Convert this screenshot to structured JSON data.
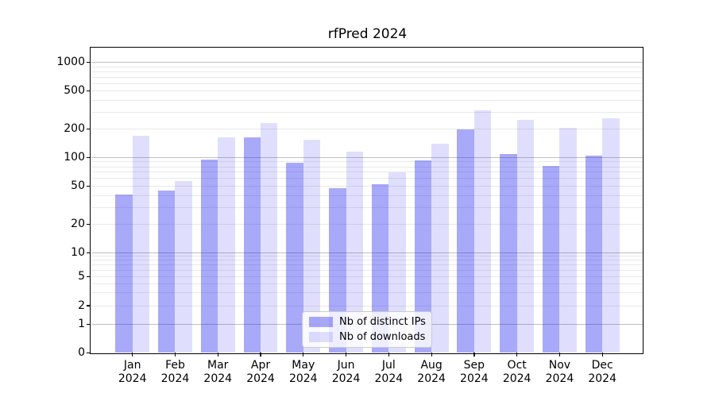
{
  "chart_data": {
    "type": "bar",
    "title": "rfPred 2024",
    "yscale": "log-like custom (compressed below 10, linear 0-1)",
    "ylim": [
      0,
      1430
    ],
    "yticks": [
      0,
      1,
      2,
      5,
      10,
      20,
      50,
      100,
      200,
      500,
      1000
    ],
    "grid": true,
    "legend_position": "lower center",
    "x_year": "2024",
    "categories": [
      "Jan",
      "Feb",
      "Mar",
      "Apr",
      "May",
      "Jun",
      "Jul",
      "Aug",
      "Sep",
      "Oct",
      "Nov",
      "Dec"
    ],
    "series": [
      {
        "name": "Nb of distinct IPs",
        "color": "#1e1ef0",
        "alpha": 0.38,
        "values": [
          41,
          45,
          96,
          163,
          88,
          48,
          52,
          93,
          197,
          109,
          82,
          105
        ]
      },
      {
        "name": "Nb of downloads",
        "color": "#1e1ef0",
        "alpha": 0.14,
        "values": [
          168,
          57,
          162,
          230,
          155,
          115,
          70,
          140,
          313,
          249,
          206,
          259
        ]
      }
    ],
    "colors": {
      "grid_major": "#c0c0c0",
      "grid_minor": "#e9e9e9",
      "axis": "#000000",
      "legend_border": "#cbcbcb"
    }
  }
}
